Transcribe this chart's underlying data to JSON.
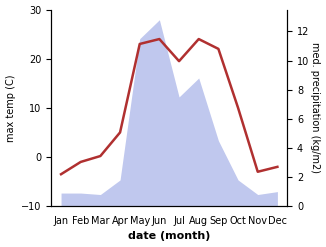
{
  "months": [
    "Jan",
    "Feb",
    "Mar",
    "Apr",
    "May",
    "Jun",
    "Jul",
    "Aug",
    "Sep",
    "Oct",
    "Nov",
    "Dec"
  ],
  "month_positions": [
    1,
    2,
    3,
    4,
    5,
    6,
    7,
    8,
    9,
    10,
    11,
    12
  ],
  "temperature": [
    -3.5,
    -1.0,
    0.2,
    5.0,
    23.0,
    24.0,
    19.5,
    24.0,
    22.0,
    10.0,
    -3.0,
    -2.0
  ],
  "precipitation": [
    0.9,
    0.9,
    0.8,
    1.8,
    11.5,
    12.8,
    7.5,
    8.8,
    4.5,
    1.8,
    0.8,
    1.0
  ],
  "temp_color": "#b03030",
  "precip_color": "#c0c8ee",
  "temp_linewidth": 1.8,
  "ylim_temp": [
    -10,
    30
  ],
  "ylim_precip": [
    0,
    13.5
  ],
  "temp_yticks": [
    -10,
    0,
    10,
    20,
    30
  ],
  "precip_yticks": [
    0,
    2,
    4,
    6,
    8,
    10,
    12
  ],
  "ylabel_left": "max temp (C)",
  "ylabel_right": "med. precipitation (kg/m2)",
  "xlabel": "date (month)",
  "background_color": "#ffffff",
  "fig_width": 3.26,
  "fig_height": 2.47,
  "dpi": 100
}
